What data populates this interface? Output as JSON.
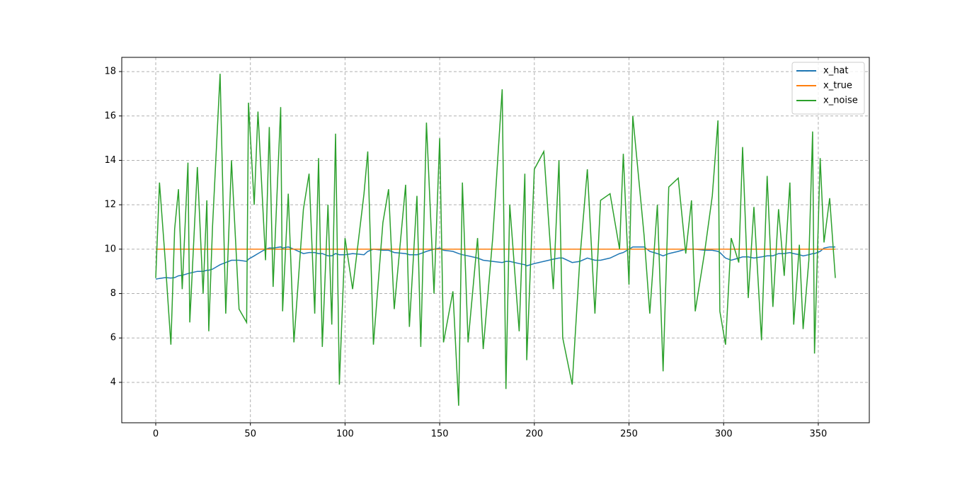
{
  "chart_data": {
    "type": "line",
    "x": [
      0,
      2,
      5,
      8,
      10,
      12,
      14,
      17,
      18,
      22,
      25,
      27,
      28,
      30,
      34,
      37,
      40,
      44,
      48,
      49,
      52,
      54,
      58,
      60,
      62,
      66,
      67,
      70,
      73,
      78,
      81,
      84,
      86,
      88,
      91,
      93,
      95,
      97,
      100,
      104,
      110,
      112,
      115,
      120,
      123,
      126,
      132,
      134,
      138,
      140,
      143,
      147,
      150,
      152,
      157,
      160,
      162,
      165,
      170,
      173,
      178,
      183,
      185,
      187,
      192,
      195,
      196,
      200,
      205,
      210,
      213,
      215,
      220,
      224,
      228,
      232,
      235,
      240,
      245,
      247,
      250,
      252,
      258,
      261,
      265,
      268,
      271,
      276,
      280,
      283,
      285,
      290,
      294,
      297,
      298,
      301,
      304,
      308,
      310,
      313,
      316,
      320,
      323,
      326,
      329,
      332,
      335,
      337,
      340,
      342,
      345,
      347,
      348,
      351,
      353,
      356,
      359
    ],
    "series": [
      {
        "name": "x_hat",
        "color": "#1f77b4",
        "values": [
          8.65,
          8.68,
          8.72,
          8.7,
          8.72,
          8.8,
          8.82,
          8.9,
          8.92,
          9.0,
          9.0,
          9.05,
          9.05,
          9.1,
          9.3,
          9.4,
          9.5,
          9.5,
          9.45,
          9.55,
          9.7,
          9.8,
          10.0,
          10.05,
          10.05,
          10.1,
          10.05,
          10.1,
          10.0,
          9.8,
          9.85,
          9.85,
          9.8,
          9.8,
          9.7,
          9.7,
          9.8,
          9.75,
          9.75,
          9.8,
          9.75,
          9.9,
          10.0,
          9.95,
          9.95,
          9.85,
          9.8,
          9.75,
          9.75,
          9.8,
          9.9,
          10.0,
          10.05,
          9.95,
          9.9,
          9.8,
          9.75,
          9.7,
          9.6,
          9.5,
          9.45,
          9.4,
          9.45,
          9.45,
          9.35,
          9.3,
          9.25,
          9.35,
          9.45,
          9.55,
          9.6,
          9.6,
          9.4,
          9.45,
          9.6,
          9.5,
          9.5,
          9.6,
          9.8,
          9.85,
          10.0,
          10.1,
          10.1,
          9.9,
          9.8,
          9.7,
          9.8,
          9.9,
          10.0,
          10.0,
          10.0,
          9.95,
          9.95,
          9.9,
          9.85,
          9.6,
          9.5,
          9.6,
          9.65,
          9.65,
          9.6,
          9.65,
          9.7,
          9.7,
          9.8,
          9.8,
          9.85,
          9.8,
          9.75,
          9.7,
          9.75,
          9.8,
          9.8,
          9.9,
          10.05,
          10.1,
          10.1
        ]
      },
      {
        "name": "x_true",
        "color": "#ff7f0e",
        "values": [
          10,
          10,
          10,
          10,
          10,
          10,
          10,
          10,
          10,
          10,
          10,
          10,
          10,
          10,
          10,
          10,
          10,
          10,
          10,
          10,
          10,
          10,
          10,
          10,
          10,
          10,
          10,
          10,
          10,
          10,
          10,
          10,
          10,
          10,
          10,
          10,
          10,
          10,
          10,
          10,
          10,
          10,
          10,
          10,
          10,
          10,
          10,
          10,
          10,
          10,
          10,
          10,
          10,
          10,
          10,
          10,
          10,
          10,
          10,
          10,
          10,
          10,
          10,
          10,
          10,
          10,
          10,
          10,
          10,
          10,
          10,
          10,
          10,
          10,
          10,
          10,
          10,
          10,
          10,
          10,
          10,
          10,
          10,
          10,
          10,
          10,
          10,
          10,
          10,
          10,
          10,
          10,
          10,
          10,
          10,
          10,
          10,
          10,
          10,
          10,
          10,
          10,
          10,
          10,
          10,
          10,
          10,
          10,
          10,
          10,
          10,
          10,
          10,
          10,
          10,
          10,
          10
        ]
      },
      {
        "name": "x_noise",
        "color": "#2ca02c",
        "values": [
          8.7,
          13.0,
          9.5,
          5.7,
          10.9,
          12.7,
          8.2,
          13.9,
          6.7,
          13.7,
          8.0,
          12.2,
          6.3,
          11.0,
          17.9,
          7.1,
          14.0,
          7.3,
          6.7,
          16.6,
          12.0,
          16.2,
          9.5,
          15.5,
          8.3,
          16.4,
          7.2,
          12.5,
          5.8,
          11.8,
          13.4,
          7.1,
          14.1,
          5.6,
          12.0,
          6.6,
          15.2,
          3.9,
          10.5,
          8.2,
          12.5,
          14.4,
          5.7,
          11.2,
          12.7,
          7.3,
          12.9,
          6.5,
          12.4,
          5.6,
          15.7,
          8.0,
          15.0,
          5.8,
          8.1,
          2.95,
          13.0,
          5.8,
          10.5,
          5.5,
          10.5,
          17.2,
          3.7,
          12.0,
          6.3,
          13.4,
          5.0,
          13.6,
          14.4,
          8.2,
          14.0,
          6.0,
          3.9,
          9.5,
          13.6,
          7.1,
          12.2,
          12.5,
          10.0,
          14.3,
          8.4,
          16.0,
          10.6,
          7.1,
          12.0,
          4.5,
          12.8,
          13.2,
          9.8,
          12.2,
          7.2,
          9.9,
          12.4,
          15.8,
          7.2,
          5.7,
          10.5,
          9.4,
          14.6,
          7.8,
          11.9,
          5.9,
          13.3,
          7.4,
          11.8,
          8.8,
          13.0,
          6.6,
          10.2,
          6.4,
          9.5,
          15.3,
          5.3,
          14.1,
          10.3,
          12.3,
          8.7
        ]
      }
    ],
    "xlim": [
      -17.95,
      376.95
    ],
    "xticks": [
      0,
      50,
      100,
      150,
      200,
      250,
      300,
      350
    ],
    "ylim": [
      2.18,
      18.64
    ],
    "yticks": [
      4,
      6,
      8,
      10,
      12,
      14,
      16,
      18
    ],
    "grid": true,
    "legend": "upper right"
  }
}
